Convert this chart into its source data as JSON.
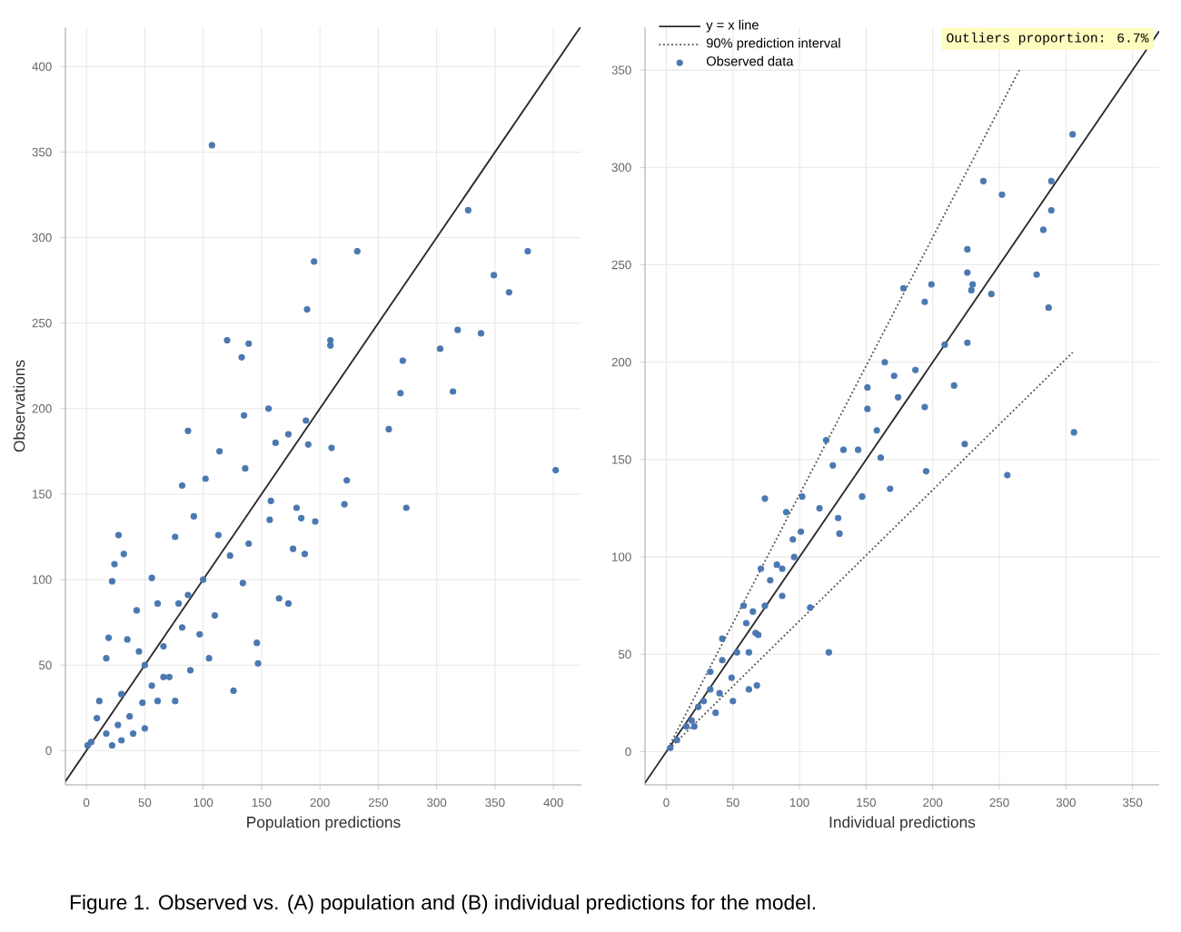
{
  "chart_data": [
    {
      "type": "scatter",
      "xlabel": "Population predictions",
      "ylabel": "Observations",
      "xlim": [
        -18,
        424
      ],
      "ylim": [
        -20,
        423
      ],
      "xticks": [
        0,
        50,
        100,
        150,
        200,
        250,
        300,
        350,
        400
      ],
      "yticks": [
        0,
        50,
        100,
        150,
        200,
        250,
        300,
        350,
        400
      ],
      "grid": true,
      "annotations": [
        "Figure 1. Observed vs. (A) population and (B) individual predictions for the model."
      ],
      "series": [
        {
          "type": "line",
          "color": "#2b2b2b",
          "line_style": "solid",
          "marker": "none",
          "x": [
            -18,
            423
          ],
          "values": [
            -18,
            423
          ]
        },
        {
          "color": "#4a78b0",
          "marker": "circle",
          "x": [
            107.5,
            232,
            195,
            189,
            378,
            349,
            362,
            327,
            318,
            338,
            303,
            120.5,
            139,
            133,
            209,
            209,
            271,
            269,
            314,
            259,
            402,
            274,
            221,
            223,
            210,
            188,
            190,
            156,
            135,
            87,
            114,
            173,
            162,
            158,
            157,
            136,
            102,
            82,
            196,
            180,
            184,
            187,
            177,
            165,
            173,
            146,
            147,
            126,
            27.5,
            32,
            24,
            22,
            92,
            76,
            113,
            123,
            139,
            134,
            100,
            56,
            61,
            79,
            97,
            82,
            105,
            89,
            43,
            35,
            19,
            17,
            45,
            66,
            71,
            56,
            30,
            11,
            9,
            4,
            17,
            27,
            37,
            48,
            61,
            76,
            22,
            40,
            50,
            66,
            50,
            87,
            110,
            1,
            30
          ],
          "values": [
            354,
            292,
            286,
            258,
            292,
            278,
            268,
            316,
            246,
            244,
            235,
            240,
            238,
            230,
            240,
            237,
            228,
            209,
            210,
            188,
            164,
            142,
            144,
            158,
            177,
            193,
            179,
            200,
            196,
            187,
            175,
            185,
            180,
            146,
            135,
            165,
            159,
            155,
            134,
            142,
            136,
            115,
            118,
            89,
            86,
            63,
            51,
            35,
            126,
            115,
            109,
            99,
            137,
            125,
            126,
            114,
            121,
            98,
            100,
            101,
            86,
            86,
            68,
            72,
            54,
            47,
            82,
            65,
            66,
            54,
            58,
            61,
            43,
            38,
            33,
            29,
            19,
            5,
            10,
            15,
            20,
            28,
            29,
            29,
            3,
            10,
            13,
            43,
            50,
            91,
            79,
            3,
            6
          ]
        }
      ]
    },
    {
      "type": "scatter",
      "xlabel": "Individual predictions",
      "xlim": [
        -16,
        370
      ],
      "ylim": [
        -17,
        372
      ],
      "xticks": [
        0,
        50,
        100,
        150,
        200,
        250,
        300,
        350
      ],
      "yticks": [
        0,
        50,
        100,
        150,
        200,
        250,
        300,
        350
      ],
      "grid": true,
      "legend": "top left",
      "annotations": [
        "Outliers proportion: 6.7%"
      ],
      "series": [
        {
          "type": "line",
          "name": "y = x line",
          "color": "#2b2b2b",
          "line_style": "solid",
          "marker": "none",
          "x": [
            -16,
            370
          ],
          "values": [
            -16,
            370
          ]
        },
        {
          "type": "line",
          "name": "90% prediction interval",
          "color": "#555555",
          "line_style": "dotted",
          "marker": "none",
          "x": [
            0,
            265
          ],
          "values": [
            0,
            350
          ]
        },
        {
          "type": "line",
          "color": "#555555",
          "line_style": "dotted",
          "marker": "none",
          "x": [
            0,
            305
          ],
          "values": [
            0,
            205
          ]
        },
        {
          "name": "Observed data",
          "color": "#4a78b0",
          "marker": "circle",
          "x": [
            305,
            238,
            289,
            252,
            289,
            283,
            226,
            226,
            230,
            199,
            194,
            178,
            244,
            229,
            278,
            287,
            226,
            209,
            216,
            164,
            187,
            171,
            174,
            151,
            151,
            194,
            158,
            306,
            224,
            256,
            195,
            133,
            144,
            120,
            125,
            161,
            168,
            147,
            129,
            130,
            115,
            102,
            74,
            90,
            95,
            83,
            71,
            108,
            122,
            67,
            68,
            50,
            62,
            101,
            87,
            60,
            42,
            53,
            33,
            40,
            24,
            15,
            8,
            3,
            28,
            19,
            58,
            78,
            87,
            96,
            74,
            65,
            42,
            62,
            33,
            49,
            21,
            37,
            69
          ],
          "values": [
            317,
            293,
            293,
            286,
            278,
            268,
            258,
            246,
            240,
            240,
            231,
            238,
            235,
            237,
            245,
            228,
            210,
            209,
            188,
            200,
            196,
            193,
            182,
            187,
            176,
            177,
            165,
            164,
            158,
            142,
            144,
            155,
            155,
            160,
            147,
            151,
            135,
            131,
            120,
            112,
            125,
            131,
            130,
            123,
            109,
            96,
            94,
            74,
            51,
            61,
            34,
            26,
            32,
            113,
            80,
            66,
            58,
            51,
            41,
            30,
            23,
            13,
            6,
            2,
            26,
            16,
            75,
            88,
            94,
            100,
            75,
            72,
            47,
            51,
            32,
            38,
            13,
            20,
            60
          ]
        }
      ]
    }
  ]
}
